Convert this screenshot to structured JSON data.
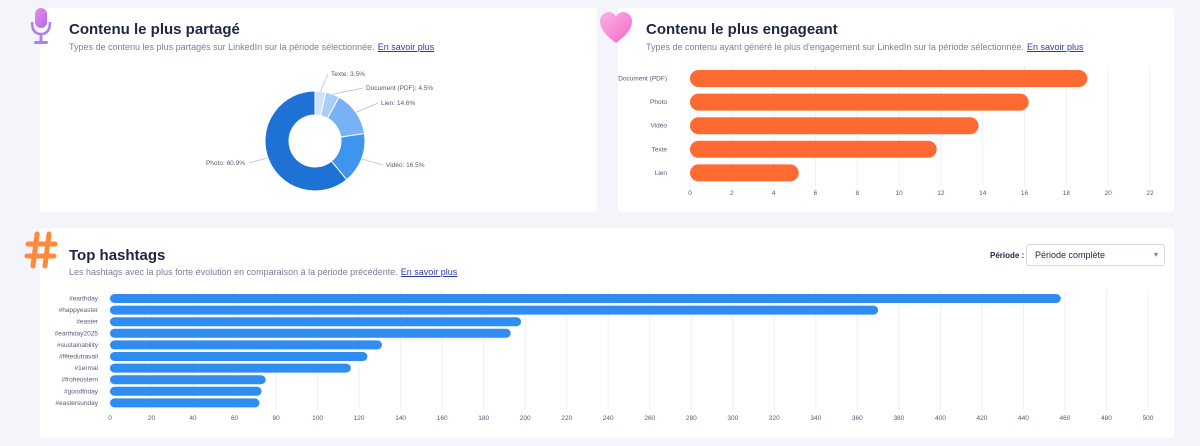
{
  "colors": {
    "blue": "#2f8cf0",
    "orange": "#ff6a33",
    "dark_blue": "#1e72d6"
  },
  "shared": {
    "title": "Contenu le plus partagé",
    "subtitle": "Types de contenu les plus partagés sur LinkedIn sur la période sélectionnée.",
    "link": "En savoir plus",
    "icon": "microphone-icon",
    "chart_data": {
      "type": "pie",
      "title": "Contenu le plus partagé",
      "slices": [
        {
          "name": "Texte",
          "value": 3.5,
          "label": "Texte: 3.5%",
          "color": "#cfe1fb"
        },
        {
          "name": "Document (PDF)",
          "value": 4.5,
          "label": "Document (PDF): 4.5%",
          "color": "#a9cdf8"
        },
        {
          "name": "Lien",
          "value": 14.6,
          "label": "Lien: 14.6%",
          "color": "#79b2f4"
        },
        {
          "name": "Vidéo",
          "value": 16.5,
          "label": "Vidéo: 16.5%",
          "color": "#3d95ee"
        },
        {
          "name": "Photo",
          "value": 60.9,
          "label": "Photo: 60.9%",
          "color": "#1e72d6"
        }
      ]
    }
  },
  "engaging": {
    "title": "Contenu le plus engageant",
    "subtitle": "Types de contenu ayant généré le plus d'engagement sur LinkedIn sur la période sélectionnée.",
    "link": "En savoir plus",
    "icon": "heart-icon",
    "chart_data": {
      "type": "bar",
      "orientation": "horizontal",
      "title": "Contenu le plus engageant",
      "categories": [
        "Document (PDF)",
        "Photo",
        "Vidéo",
        "Texte",
        "Lien"
      ],
      "values": [
        19,
        16.2,
        13.8,
        11.8,
        5.2
      ],
      "xlim": [
        0,
        22
      ],
      "ticks": [
        0,
        2,
        4,
        6,
        8,
        10,
        12,
        14,
        16,
        18,
        20,
        22
      ],
      "color": "#ff6a33"
    }
  },
  "hashtags": {
    "title": "Top hashtags",
    "subtitle": "Les hashtags avec la plus forte évolution en comparaison à la période précédente.",
    "link": "En savoir plus",
    "icon": "hashtag-icon",
    "period_label": "Période :",
    "period_value": "Période complète",
    "chart_data": {
      "type": "bar",
      "orientation": "horizontal",
      "title": "Top hashtags",
      "categories": [
        "#earthday",
        "#happyeaster",
        "#easter",
        "#earthday2025",
        "#sustainability",
        "#fêtedutravail",
        "#1ermai",
        "#froheostern",
        "#goodfriday",
        "#eastersunday"
      ],
      "values": [
        458,
        370,
        198,
        193,
        131,
        124,
        116,
        75,
        73,
        72
      ],
      "xlim": [
        0,
        500
      ],
      "ticks": [
        0,
        20,
        40,
        60,
        80,
        100,
        120,
        140,
        160,
        180,
        200,
        220,
        240,
        260,
        280,
        300,
        320,
        340,
        360,
        380,
        400,
        420,
        440,
        460,
        480,
        500
      ],
      "color": "#2f8cf0"
    }
  }
}
